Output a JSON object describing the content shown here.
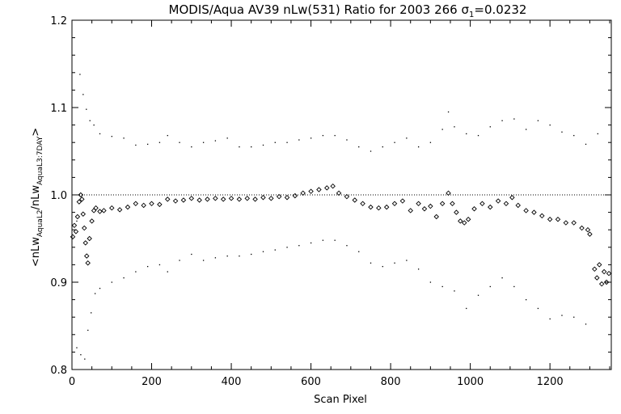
{
  "chart_data": {
    "type": "scatter",
    "title_main": "MODIS/Aqua AV39 nLw(531) Ratio for 2003 266 ",
    "title_sigma": "σ",
    "title_sigma_sub": "1",
    "title_sigma_value": "=0.0232",
    "xlabel": "Scan Pixel",
    "ylabel_parts": {
      "open": "<nLw",
      "sub1": "AquaL2",
      "slash": "/nLw",
      "sub2": "AquaL3:7DAY",
      "close": ">"
    },
    "xlim": [
      0,
      1354
    ],
    "ylim": [
      0.8,
      1.2
    ],
    "x_ticks": [
      0,
      200,
      400,
      600,
      800,
      1000,
      1200
    ],
    "x_tick_labels": [
      "0",
      "200",
      "400",
      "600",
      "800",
      "1000",
      "1200"
    ],
    "y_ticks": [
      0.8,
      0.9,
      1.0,
      1.1,
      1.2
    ],
    "y_tick_labels": [
      "0.8",
      "0.9",
      "1.0",
      "1.1",
      "1.2"
    ],
    "reference_line": 1.0,
    "series": [
      {
        "style": "diamond",
        "points": [
          [
            2,
            0.952
          ],
          [
            6,
            0.965
          ],
          [
            10,
            0.958
          ],
          [
            14,
            0.975
          ],
          [
            18,
            0.992
          ],
          [
            22,
            1.0
          ],
          [
            25,
            0.995
          ],
          [
            28,
            0.978
          ],
          [
            31,
            0.962
          ],
          [
            34,
            0.945
          ],
          [
            37,
            0.93
          ],
          [
            40,
            0.922
          ],
          [
            44,
            0.95
          ],
          [
            50,
            0.97
          ],
          [
            55,
            0.982
          ],
          [
            60,
            0.985
          ],
          [
            70,
            0.981
          ],
          [
            80,
            0.982
          ],
          [
            100,
            0.985
          ],
          [
            120,
            0.983
          ],
          [
            140,
            0.986
          ],
          [
            160,
            0.99
          ],
          [
            180,
            0.988
          ],
          [
            200,
            0.99
          ],
          [
            220,
            0.989
          ],
          [
            240,
            0.995
          ],
          [
            260,
            0.993
          ],
          [
            280,
            0.994
          ],
          [
            300,
            0.996
          ],
          [
            320,
            0.994
          ],
          [
            340,
            0.995
          ],
          [
            360,
            0.996
          ],
          [
            380,
            0.995
          ],
          [
            400,
            0.996
          ],
          [
            420,
            0.995
          ],
          [
            440,
            0.996
          ],
          [
            460,
            0.995
          ],
          [
            480,
            0.997
          ],
          [
            500,
            0.996
          ],
          [
            520,
            0.998
          ],
          [
            540,
            0.997
          ],
          [
            560,
            0.999
          ],
          [
            580,
            1.002
          ],
          [
            600,
            1.004
          ],
          [
            620,
            1.006
          ],
          [
            640,
            1.008
          ],
          [
            655,
            1.01
          ],
          [
            670,
            1.002
          ],
          [
            690,
            0.998
          ],
          [
            710,
            0.994
          ],
          [
            730,
            0.99
          ],
          [
            750,
            0.986
          ],
          [
            770,
            0.985
          ],
          [
            790,
            0.986
          ],
          [
            810,
            0.99
          ],
          [
            830,
            0.993
          ],
          [
            850,
            0.982
          ],
          [
            870,
            0.99
          ],
          [
            885,
            0.984
          ],
          [
            900,
            0.987
          ],
          [
            915,
            0.975
          ],
          [
            930,
            0.99
          ],
          [
            945,
            1.002
          ],
          [
            955,
            0.99
          ],
          [
            965,
            0.98
          ],
          [
            975,
            0.97
          ],
          [
            985,
            0.968
          ],
          [
            995,
            0.972
          ],
          [
            1010,
            0.984
          ],
          [
            1030,
            0.99
          ],
          [
            1050,
            0.986
          ],
          [
            1070,
            0.993
          ],
          [
            1090,
            0.99
          ],
          [
            1105,
            0.997
          ],
          [
            1120,
            0.988
          ],
          [
            1140,
            0.982
          ],
          [
            1160,
            0.98
          ],
          [
            1180,
            0.976
          ],
          [
            1200,
            0.972
          ],
          [
            1220,
            0.972
          ],
          [
            1240,
            0.968
          ],
          [
            1260,
            0.968
          ],
          [
            1280,
            0.962
          ],
          [
            1295,
            0.96
          ],
          [
            1300,
            0.955
          ],
          [
            1312,
            0.915
          ],
          [
            1318,
            0.905
          ],
          [
            1324,
            0.92
          ],
          [
            1330,
            0.898
          ],
          [
            1336,
            0.912
          ],
          [
            1342,
            0.9
          ],
          [
            1348,
            0.91
          ]
        ]
      },
      {
        "style": "dot",
        "points": [
          [
            12,
            0.97
          ],
          [
            20,
            1.138
          ],
          [
            28,
            1.115
          ],
          [
            36,
            1.098
          ],
          [
            45,
            1.085
          ],
          [
            55,
            1.08
          ],
          [
            70,
            1.07
          ],
          [
            100,
            1.067
          ],
          [
            130,
            1.065
          ],
          [
            160,
            1.057
          ],
          [
            190,
            1.058
          ],
          [
            220,
            1.06
          ],
          [
            240,
            1.068
          ],
          [
            270,
            1.06
          ],
          [
            300,
            1.055
          ],
          [
            330,
            1.06
          ],
          [
            360,
            1.062
          ],
          [
            390,
            1.065
          ],
          [
            420,
            1.055
          ],
          [
            450,
            1.055
          ],
          [
            480,
            1.057
          ],
          [
            510,
            1.06
          ],
          [
            540,
            1.06
          ],
          [
            570,
            1.063
          ],
          [
            600,
            1.065
          ],
          [
            630,
            1.068
          ],
          [
            660,
            1.068
          ],
          [
            690,
            1.063
          ],
          [
            720,
            1.055
          ],
          [
            750,
            1.05
          ],
          [
            780,
            1.055
          ],
          [
            810,
            1.06
          ],
          [
            840,
            1.065
          ],
          [
            870,
            1.055
          ],
          [
            900,
            1.06
          ],
          [
            930,
            1.075
          ],
          [
            945,
            1.095
          ],
          [
            960,
            1.078
          ],
          [
            990,
            1.07
          ],
          [
            1020,
            1.068
          ],
          [
            1050,
            1.078
          ],
          [
            1080,
            1.085
          ],
          [
            1110,
            1.087
          ],
          [
            1140,
            1.075
          ],
          [
            1170,
            1.085
          ],
          [
            1200,
            1.08
          ],
          [
            1230,
            1.072
          ],
          [
            1260,
            1.068
          ],
          [
            1290,
            1.058
          ],
          [
            1320,
            1.07
          ]
        ]
      },
      {
        "style": "dot",
        "points": [
          [
            12,
            0.825
          ],
          [
            22,
            0.817
          ],
          [
            32,
            0.812
          ],
          [
            40,
            0.845
          ],
          [
            48,
            0.865
          ],
          [
            58,
            0.887
          ],
          [
            70,
            0.893
          ],
          [
            100,
            0.9
          ],
          [
            130,
            0.905
          ],
          [
            160,
            0.912
          ],
          [
            190,
            0.918
          ],
          [
            220,
            0.92
          ],
          [
            240,
            0.912
          ],
          [
            270,
            0.925
          ],
          [
            300,
            0.932
          ],
          [
            330,
            0.925
          ],
          [
            360,
            0.928
          ],
          [
            390,
            0.93
          ],
          [
            420,
            0.93
          ],
          [
            450,
            0.932
          ],
          [
            480,
            0.935
          ],
          [
            510,
            0.937
          ],
          [
            540,
            0.94
          ],
          [
            570,
            0.942
          ],
          [
            600,
            0.945
          ],
          [
            630,
            0.948
          ],
          [
            660,
            0.948
          ],
          [
            690,
            0.942
          ],
          [
            720,
            0.935
          ],
          [
            750,
            0.922
          ],
          [
            780,
            0.918
          ],
          [
            810,
            0.922
          ],
          [
            840,
            0.925
          ],
          [
            870,
            0.915
          ],
          [
            900,
            0.9
          ],
          [
            930,
            0.895
          ],
          [
            960,
            0.89
          ],
          [
            990,
            0.87
          ],
          [
            1020,
            0.885
          ],
          [
            1050,
            0.895
          ],
          [
            1080,
            0.905
          ],
          [
            1110,
            0.895
          ],
          [
            1140,
            0.88
          ],
          [
            1170,
            0.87
          ],
          [
            1200,
            0.858
          ],
          [
            1230,
            0.862
          ],
          [
            1260,
            0.86
          ],
          [
            1290,
            0.852
          ]
        ]
      }
    ]
  }
}
